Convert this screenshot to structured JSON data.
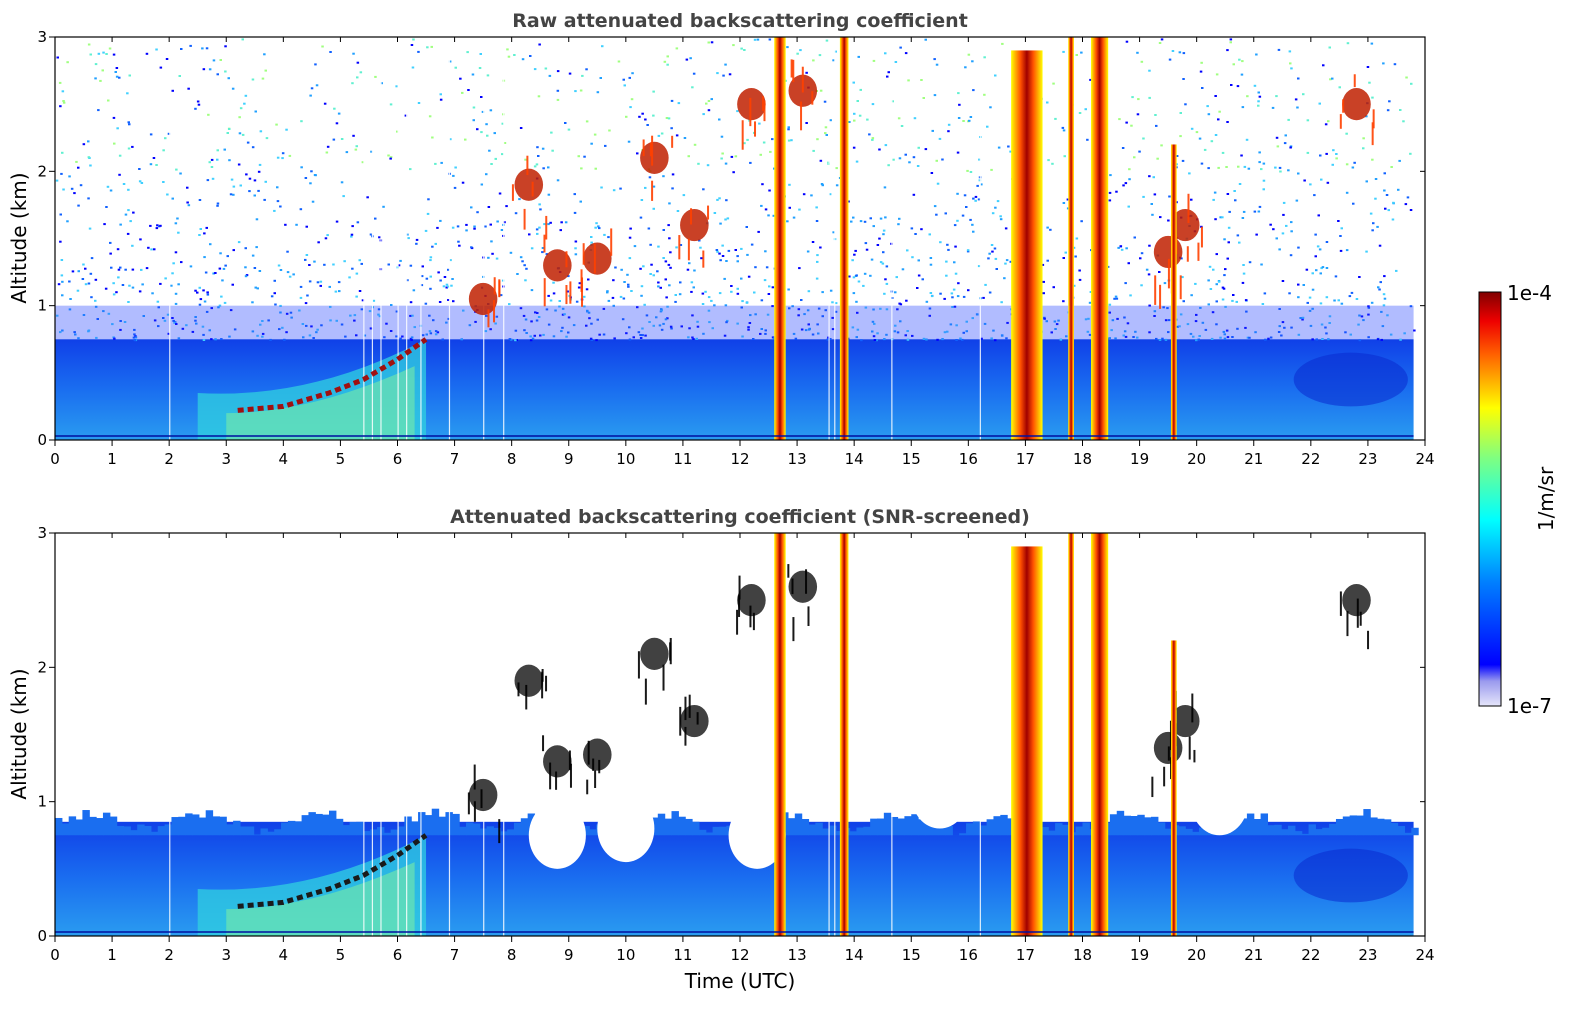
{
  "chart_data": [
    {
      "type": "heatmap",
      "title": "Raw attenuated backscattering coefficient",
      "xlabel": "",
      "ylabel": "Altitude (km)",
      "xlim": [
        0,
        24
      ],
      "ylim": [
        0,
        3
      ],
      "xticks": [
        "0",
        "1",
        "2",
        "3",
        "4",
        "5",
        "6",
        "7",
        "8",
        "9",
        "10",
        "11",
        "12",
        "13",
        "14",
        "15",
        "16",
        "17",
        "18",
        "19",
        "20",
        "21",
        "22",
        "23",
        "24"
      ],
      "yticks": [
        "0",
        "1",
        "2",
        "3"
      ],
      "screened": false,
      "colorscale": "jet, log",
      "features": {
        "boundary_layer_top_km": 0.75,
        "aerosol_layer": [
          {
            "t": 3.2,
            "z": 0.22
          },
          {
            "t": 4.0,
            "z": 0.25
          },
          {
            "t": 4.8,
            "z": 0.35
          },
          {
            "t": 5.4,
            "z": 0.45
          },
          {
            "t": 6.0,
            "z": 0.6
          },
          {
            "t": 6.5,
            "z": 0.75
          }
        ],
        "precipitation_shafts": [
          {
            "t0": 12.6,
            "t1": 12.8,
            "top": 3.0
          },
          {
            "t0": 13.75,
            "t1": 13.9,
            "top": 3.0
          },
          {
            "t0": 16.75,
            "t1": 17.3,
            "top": 2.9
          },
          {
            "t0": 17.75,
            "t1": 17.85,
            "top": 3.0
          },
          {
            "t0": 18.15,
            "t1": 18.45,
            "top": 3.0
          },
          {
            "t0": 19.55,
            "t1": 19.65,
            "top": 2.2
          }
        ],
        "cloud_patches": [
          {
            "t": 7.5,
            "z": 1.05
          },
          {
            "t": 8.3,
            "z": 1.9
          },
          {
            "t": 8.8,
            "z": 1.3
          },
          {
            "t": 9.5,
            "z": 1.35
          },
          {
            "t": 10.5,
            "z": 2.1
          },
          {
            "t": 11.2,
            "z": 1.6
          },
          {
            "t": 12.2,
            "z": 2.5
          },
          {
            "t": 13.1,
            "z": 2.6
          },
          {
            "t": 19.5,
            "z": 1.4
          },
          {
            "t": 19.8,
            "z": 1.6
          },
          {
            "t": 22.8,
            "z": 2.5
          }
        ]
      }
    },
    {
      "type": "heatmap",
      "title": "Attenuated backscattering coefficient (SNR-screened)",
      "xlabel": "Time (UTC)",
      "ylabel": "Altitude (km)",
      "xlim": [
        0,
        24
      ],
      "ylim": [
        0,
        3
      ],
      "xticks": [
        "0",
        "1",
        "2",
        "3",
        "4",
        "5",
        "6",
        "7",
        "8",
        "9",
        "10",
        "11",
        "12",
        "13",
        "14",
        "15",
        "16",
        "17",
        "18",
        "19",
        "20",
        "21",
        "22",
        "23",
        "24"
      ],
      "yticks": [
        "0",
        "1",
        "2",
        "3"
      ],
      "screened": true,
      "colorscale": "jet, log",
      "features": {
        "boundary_layer_top_km": 0.85
      }
    }
  ],
  "colorbar": {
    "label": "1/m/sr",
    "max_label": "1e-4",
    "min_label": "1e-7",
    "scale": "log",
    "colors": [
      "#e6e6fa",
      "#00008f",
      "#0000ff",
      "#0080ff",
      "#00ffff",
      "#80ff80",
      "#ffff00",
      "#ff8000",
      "#ff0000",
      "#800000"
    ]
  }
}
